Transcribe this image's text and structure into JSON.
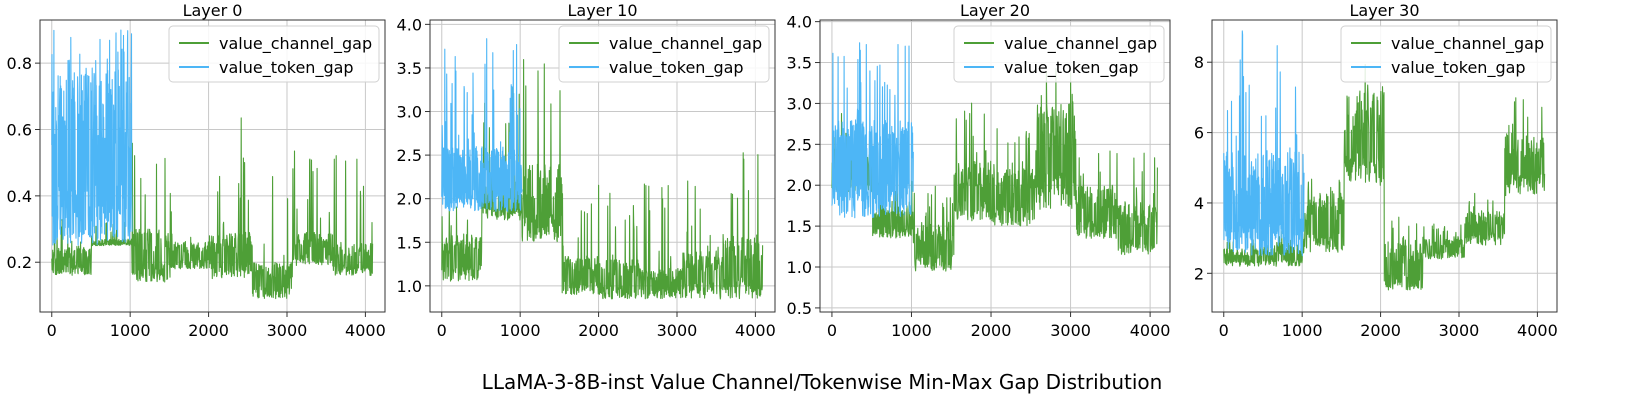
{
  "figure": {
    "suptitle": "LLaMA-3-8B-inst Value Channel/Tokenwise Min-Max Gap Distribution"
  },
  "colors": {
    "channel": "#4e9f37",
    "token": "#4db6f6",
    "grid": "#c8c8c8",
    "axis": "#333333"
  },
  "chart_data": [
    {
      "type": "line",
      "title": "Layer 0",
      "xlim": [
        -150,
        4250
      ],
      "ylim": [
        0.05,
        0.93
      ],
      "xticks": [
        0,
        1000,
        2000,
        3000,
        4000
      ],
      "yticks": [
        0.2,
        0.4,
        0.6,
        0.8
      ],
      "ytick_labels": [
        "0.2",
        "0.4",
        "0.6",
        "0.8"
      ],
      "grid": true,
      "legend": "top-right",
      "series": [
        {
          "name": "value_channel_gap",
          "color": "#4e9f37",
          "x_range": [
            0,
            4096
          ],
          "segments": [
            {
              "x": [
                0,
                512
              ],
              "base": 0.16,
              "upper": 0.25,
              "spike_max": 0.35
            },
            {
              "x": [
                512,
                1024
              ],
              "base": 0.25,
              "upper": 0.27,
              "spike_max": 0.33
            },
            {
              "x": [
                1024,
                1536
              ],
              "base": 0.14,
              "upper": 0.3,
              "spike_max": 0.58
            },
            {
              "x": [
                1536,
                2048
              ],
              "base": 0.18,
              "upper": 0.26,
              "spike_max": 0.28
            },
            {
              "x": [
                2048,
                2560
              ],
              "base": 0.15,
              "upper": 0.29,
              "spike_max": 0.64
            },
            {
              "x": [
                2560,
                3072
              ],
              "base": 0.09,
              "upper": 0.2,
              "spike_max": 0.58
            },
            {
              "x": [
                3072,
                3584
              ],
              "base": 0.19,
              "upper": 0.29,
              "spike_max": 0.56
            },
            {
              "x": [
                3584,
                4096
              ],
              "base": 0.16,
              "upper": 0.26,
              "spike_max": 0.55
            }
          ]
        },
        {
          "name": "value_token_gap",
          "color": "#4db6f6",
          "x_range": [
            0,
            1024
          ],
          "segments": [
            {
              "x": [
                0,
                1024
              ],
              "base": 0.25,
              "upper": 0.78,
              "spike_max": 0.9
            }
          ]
        }
      ]
    },
    {
      "type": "line",
      "title": "Layer 10",
      "xlim": [
        -150,
        4250
      ],
      "ylim": [
        0.7,
        4.05
      ],
      "xticks": [
        0,
        1000,
        2000,
        3000,
        4000
      ],
      "yticks": [
        1.0,
        1.5,
        2.0,
        2.5,
        3.0,
        3.5,
        4.0
      ],
      "ytick_labels": [
        "1.0",
        "1.5",
        "2.0",
        "2.5",
        "3.0",
        "3.5",
        "4.0"
      ],
      "grid": true,
      "legend": "top-right",
      "series": [
        {
          "name": "value_channel_gap",
          "color": "#4e9f37",
          "x_range": [
            0,
            4096
          ],
          "segments": [
            {
              "x": [
                0,
                512
              ],
              "base": 1.05,
              "upper": 1.6,
              "spike_max": 1.95
            },
            {
              "x": [
                512,
                1024
              ],
              "base": 1.75,
              "upper": 2.2,
              "spike_max": 3.3
            },
            {
              "x": [
                1024,
                1536
              ],
              "base": 1.5,
              "upper": 2.4,
              "spike_max": 3.9
            },
            {
              "x": [
                1536,
                2048
              ],
              "base": 0.9,
              "upper": 1.35,
              "spike_max": 2.2
            },
            {
              "x": [
                2048,
                2560
              ],
              "base": 0.85,
              "upper": 1.3,
              "spike_max": 2.1
            },
            {
              "x": [
                2560,
                3072
              ],
              "base": 0.85,
              "upper": 1.2,
              "spike_max": 2.3
            },
            {
              "x": [
                3072,
                3584
              ],
              "base": 0.85,
              "upper": 1.4,
              "spike_max": 2.3
            },
            {
              "x": [
                3584,
                4096
              ],
              "base": 0.85,
              "upper": 1.6,
              "spike_max": 2.55
            }
          ]
        },
        {
          "name": "value_token_gap",
          "color": "#4db6f6",
          "x_range": [
            0,
            1024
          ],
          "segments": [
            {
              "x": [
                0,
                1024
              ],
              "base": 1.85,
              "upper": 2.6,
              "spike_max": 3.85
            }
          ]
        }
      ]
    },
    {
      "type": "line",
      "title": "Layer 20",
      "xlim": [
        -150,
        4250
      ],
      "ylim": [
        0.45,
        4.02
      ],
      "xticks": [
        0,
        1000,
        2000,
        3000,
        4000
      ],
      "yticks": [
        0.5,
        1.0,
        1.5,
        2.0,
        2.5,
        3.0,
        3.5,
        4.0
      ],
      "ytick_labels": [
        "0.5",
        "1.0",
        "1.5",
        "2.0",
        "2.5",
        "3.0",
        "3.5",
        "4.0"
      ],
      "grid": true,
      "legend": "top-right",
      "series": [
        {
          "name": "value_channel_gap",
          "color": "#4e9f37",
          "x_range": [
            0,
            4096
          ],
          "segments": [
            {
              "x": [
                0,
                512
              ],
              "base": 1.9,
              "upper": 2.4,
              "spike_max": 2.9
            },
            {
              "x": [
                512,
                1024
              ],
              "base": 1.35,
              "upper": 1.75,
              "spike_max": 2.1
            },
            {
              "x": [
                1024,
                1536
              ],
              "base": 0.95,
              "upper": 1.55,
              "spike_max": 2.0
            },
            {
              "x": [
                1536,
                2048
              ],
              "base": 1.55,
              "upper": 2.3,
              "spike_max": 3.1
            },
            {
              "x": [
                2048,
                2560
              ],
              "base": 1.5,
              "upper": 2.2,
              "spike_max": 2.7
            },
            {
              "x": [
                2560,
                3072
              ],
              "base": 1.7,
              "upper": 3.0,
              "spike_max": 3.55
            },
            {
              "x": [
                3072,
                3584
              ],
              "base": 1.35,
              "upper": 2.0,
              "spike_max": 2.5
            },
            {
              "x": [
                3584,
                4096
              ],
              "base": 1.15,
              "upper": 1.8,
              "spike_max": 2.4
            }
          ]
        },
        {
          "name": "value_token_gap",
          "color": "#4db6f6",
          "x_range": [
            0,
            1024
          ],
          "segments": [
            {
              "x": [
                0,
                1024
              ],
              "base": 1.6,
              "upper": 2.8,
              "spike_max": 3.85
            }
          ]
        }
      ]
    },
    {
      "type": "line",
      "title": "Layer 30",
      "xlim": [
        -150,
        4250
      ],
      "ylim": [
        0.9,
        9.2
      ],
      "xticks": [
        0,
        1000,
        2000,
        3000,
        4000
      ],
      "yticks": [
        2,
        4,
        6,
        8
      ],
      "ytick_labels": [
        "2",
        "4",
        "6",
        "8"
      ],
      "grid": true,
      "legend": "top-right",
      "series": [
        {
          "name": "value_channel_gap",
          "color": "#4e9f37",
          "x_range": [
            0,
            4096
          ],
          "segments": [
            {
              "x": [
                0,
                512
              ],
              "base": 2.2,
              "upper": 2.7,
              "spike_max": 3.0
            },
            {
              "x": [
                512,
                1024
              ],
              "base": 2.2,
              "upper": 2.8,
              "spike_max": 3.2
            },
            {
              "x": [
                1024,
                1536
              ],
              "base": 2.6,
              "upper": 4.2,
              "spike_max": 4.8
            },
            {
              "x": [
                1536,
                2048
              ],
              "base": 4.5,
              "upper": 7.2,
              "spike_max": 8.1
            },
            {
              "x": [
                2048,
                2560
              ],
              "base": 1.5,
              "upper": 2.9,
              "spike_max": 3.6
            },
            {
              "x": [
                2560,
                3072
              ],
              "base": 2.4,
              "upper": 3.0,
              "spike_max": 3.4
            },
            {
              "x": [
                3072,
                3584
              ],
              "base": 2.8,
              "upper": 3.8,
              "spike_max": 4.3
            },
            {
              "x": [
                3584,
                4096
              ],
              "base": 4.2,
              "upper": 6.0,
              "spike_max": 7.1
            }
          ]
        },
        {
          "name": "value_token_gap",
          "color": "#4db6f6",
          "x_range": [
            0,
            1024
          ],
          "segments": [
            {
              "x": [
                0,
                1024
              ],
              "base": 2.5,
              "upper": 5.5,
              "spike_max": 8.9
            }
          ]
        }
      ]
    }
  ]
}
